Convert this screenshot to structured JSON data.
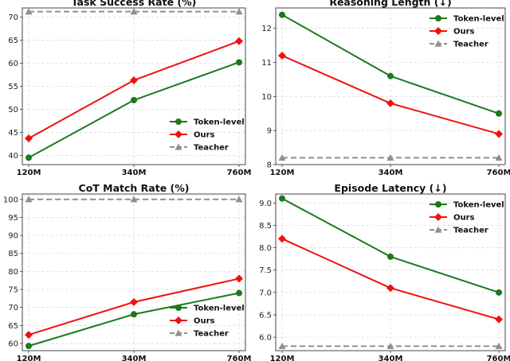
{
  "chart_data": [
    {
      "type": "line",
      "title": "Task Success Rate (%)",
      "categories": [
        "120M",
        "340M",
        "760M"
      ],
      "ylim": [
        38,
        72
      ],
      "yticks": [
        40,
        45,
        50,
        55,
        60,
        65,
        70
      ],
      "legend": "lower-right",
      "grid": true,
      "series": [
        {
          "name": "Token-level",
          "values": [
            39.5,
            52,
            60.2
          ],
          "color": "#1b7a1b",
          "marker": "circle",
          "dashed": false
        },
        {
          "name": "Ours",
          "values": [
            43.7,
            56.3,
            64.8
          ],
          "color": "#ee1111",
          "marker": "diamond",
          "dashed": false
        },
        {
          "name": "Teacher",
          "values": [
            71.2,
            71.2,
            71.2
          ],
          "color": "#8f8f8f",
          "marker": "triangle",
          "dashed": true
        }
      ]
    },
    {
      "type": "line",
      "title": "Reasoning Length (↓)",
      "categories": [
        "120M",
        "340M",
        "760M"
      ],
      "ylim": [
        8,
        12.6
      ],
      "yticks": [
        8,
        9,
        10,
        11,
        12
      ],
      "legend": "top-right",
      "grid": true,
      "series": [
        {
          "name": "Token-level",
          "values": [
            12.4,
            10.6,
            9.5
          ],
          "color": "#1b7a1b",
          "marker": "circle",
          "dashed": false
        },
        {
          "name": "Ours",
          "values": [
            11.2,
            9.8,
            8.9
          ],
          "color": "#ee1111",
          "marker": "diamond",
          "dashed": false
        },
        {
          "name": "Teacher",
          "values": [
            8.2,
            8.2,
            8.2
          ],
          "color": "#8f8f8f",
          "marker": "triangle",
          "dashed": true
        }
      ]
    },
    {
      "type": "line",
      "title": "CoT Match Rate (%)",
      "categories": [
        "120M",
        "340M",
        "760M"
      ],
      "ylim": [
        58,
        101.5
      ],
      "yticks": [
        60,
        65,
        70,
        75,
        80,
        85,
        90,
        95,
        100
      ],
      "legend": "lower-right",
      "grid": true,
      "series": [
        {
          "name": "Token-level",
          "values": [
            59.3,
            68.1,
            74
          ],
          "color": "#1b7a1b",
          "marker": "circle",
          "dashed": false
        },
        {
          "name": "Ours",
          "values": [
            62.4,
            71.5,
            78
          ],
          "color": "#ee1111",
          "marker": "diamond",
          "dashed": false
        },
        {
          "name": "Teacher",
          "values": [
            100,
            100,
            100
          ],
          "color": "#8f8f8f",
          "marker": "triangle",
          "dashed": true
        }
      ]
    },
    {
      "type": "line",
      "title": "Episode Latency (↓)",
      "categories": [
        "120M",
        "340M",
        "760M"
      ],
      "ylim": [
        5.7,
        9.2
      ],
      "yticks": [
        6.0,
        6.5,
        7.0,
        7.5,
        8.0,
        8.5,
        9.0
      ],
      "legend": "top-right",
      "grid": true,
      "series": [
        {
          "name": "Token-level",
          "values": [
            9.1,
            7.8,
            7.0
          ],
          "color": "#1b7a1b",
          "marker": "circle",
          "dashed": false
        },
        {
          "name": "Ours",
          "values": [
            8.2,
            7.1,
            6.4
          ],
          "color": "#ee1111",
          "marker": "diamond",
          "dashed": false
        },
        {
          "name": "Teacher",
          "values": [
            5.8,
            5.8,
            5.8
          ],
          "color": "#8f8f8f",
          "marker": "triangle",
          "dashed": true
        }
      ]
    }
  ]
}
